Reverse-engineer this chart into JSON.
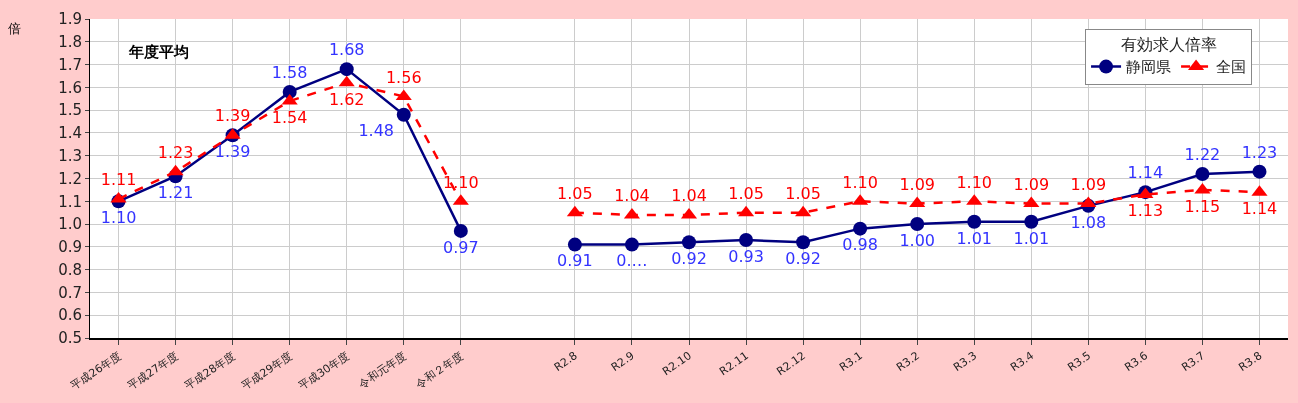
{
  "chart_data": {
    "type": "line",
    "ylabel": "倍",
    "legend_title": "有効求人倍率",
    "annotations": [
      "年度平均"
    ],
    "categories": [
      "平成26年度",
      "平成27年度",
      "平成28年度",
      "平成29年度",
      "平成30年度",
      "令和元年度",
      "令和２年度",
      null,
      "R2.8",
      "R2.9",
      "R2.10",
      "R2.11",
      "R2.12",
      "R3.1",
      "R3.2",
      "R3.3",
      "R3.4",
      "R3.5",
      "R3.6",
      "R3.7",
      "R3.8"
    ],
    "series": [
      {
        "name": "静岡県",
        "color": "#000080",
        "marker": "circle",
        "line_style": "solid",
        "values": [
          1.1,
          1.21,
          1.39,
          1.58,
          1.68,
          1.48,
          0.97,
          null,
          0.91,
          0.91,
          0.92,
          0.93,
          0.92,
          0.98,
          1.0,
          1.01,
          1.01,
          1.08,
          1.14,
          1.22,
          1.23
        ],
        "value_labels": [
          "1.10",
          "1.21",
          "1.39",
          "1.58",
          "1.68",
          "1.48",
          "0.97",
          null,
          "0.91",
          "0.…",
          "0.92",
          "0.93",
          "0.92",
          "0.98",
          "1.00",
          "1.01",
          "1.01",
          "1.08",
          "1.14",
          "1.22",
          "1.23"
        ]
      },
      {
        "name": "全国",
        "color": "#ff0000",
        "marker": "triangle",
        "line_style": "dashed",
        "values": [
          1.11,
          1.23,
          1.39,
          1.54,
          1.62,
          1.56,
          1.1,
          null,
          1.05,
          1.04,
          1.04,
          1.05,
          1.05,
          1.1,
          1.09,
          1.1,
          1.09,
          1.09,
          1.13,
          1.15,
          1.14
        ],
        "value_labels": [
          "1.11",
          "1.23",
          "1.39",
          "1.54",
          "1.62",
          "1.56",
          "1.10",
          null,
          "1.05",
          "1.04",
          "1.04",
          "1.05",
          "1.05",
          "1.10",
          "1.09",
          "1.10",
          "1.09",
          "1.09",
          "1.13",
          "1.15",
          "1.14"
        ]
      }
    ],
    "ylim": [
      0.5,
      1.9
    ],
    "yticks": [
      "0.5",
      "0.6",
      "0.7",
      "0.8",
      "0.9",
      "1.0",
      "1.1",
      "1.2",
      "1.3",
      "1.4",
      "1.5",
      "1.6",
      "1.7",
      "1.8",
      "1.9"
    ],
    "grid": true,
    "legend": "top right"
  }
}
